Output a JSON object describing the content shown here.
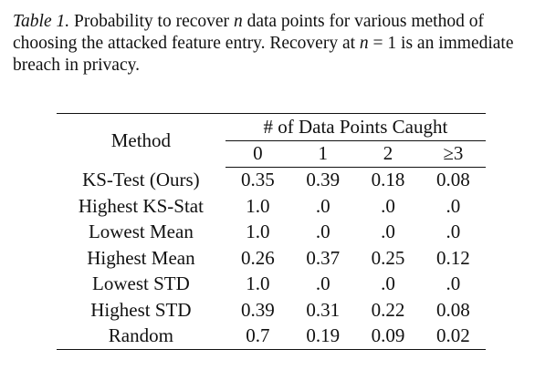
{
  "caption": {
    "label": "Table 1.",
    "pre": " Probability to recover ",
    "n1": "n",
    "mid": " data points for various method of choosing the attacked feature entry. Recovery at ",
    "n2": "n",
    "eq": " = 1 is an immediate breach in privacy."
  },
  "table": {
    "method_header": "Method",
    "group_header": "# of Data Points Caught",
    "subheaders": [
      "0",
      "1",
      "2",
      "≥3"
    ],
    "rows": [
      {
        "method": "KS-Test (Ours)",
        "values": [
          "0.35",
          "0.39",
          "0.18",
          "0.08"
        ]
      },
      {
        "method": "Highest KS-Stat",
        "values": [
          "1.0",
          ".0",
          ".0",
          ".0"
        ]
      },
      {
        "method": "Lowest Mean",
        "values": [
          "1.0",
          ".0",
          ".0",
          ".0"
        ]
      },
      {
        "method": "Highest Mean",
        "values": [
          "0.26",
          "0.37",
          "0.25",
          "0.12"
        ]
      },
      {
        "method": "Lowest STD",
        "values": [
          "1.0",
          ".0",
          ".0",
          ".0"
        ]
      },
      {
        "method": "Highest STD",
        "values": [
          "0.39",
          "0.31",
          "0.22",
          "0.08"
        ]
      },
      {
        "method": "Random",
        "values": [
          "0.7",
          "0.19",
          "0.09",
          "0.02"
        ]
      }
    ]
  }
}
